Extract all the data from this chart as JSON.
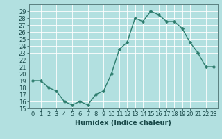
{
  "x": [
    0,
    1,
    2,
    3,
    4,
    5,
    6,
    7,
    8,
    9,
    10,
    11,
    12,
    13,
    14,
    15,
    16,
    17,
    18,
    19,
    20,
    21,
    22,
    23
  ],
  "y": [
    19,
    19,
    18,
    17.5,
    16,
    15.5,
    16,
    15.5,
    17,
    17.5,
    20,
    23.5,
    24.5,
    28,
    27.5,
    29,
    28.5,
    27.5,
    27.5,
    26.5,
    24.5,
    23,
    21,
    21
  ],
  "line_color": "#2e7d6e",
  "marker_color": "#2e7d6e",
  "bg_color": "#b2e0e0",
  "grid_color": "#ffffff",
  "xlabel": "Humidex (Indice chaleur)",
  "ylim": [
    15,
    30
  ],
  "xlim_min": -0.5,
  "xlim_max": 23.5,
  "yticks": [
    15,
    16,
    17,
    18,
    19,
    20,
    21,
    22,
    23,
    24,
    25,
    26,
    27,
    28,
    29
  ],
  "xticks": [
    0,
    1,
    2,
    3,
    4,
    5,
    6,
    7,
    8,
    9,
    10,
    11,
    12,
    13,
    14,
    15,
    16,
    17,
    18,
    19,
    20,
    21,
    22,
    23
  ],
  "xlabel_fontsize": 7,
  "tick_fontsize": 6,
  "marker_size": 2.5,
  "line_width": 1.0,
  "spine_color": "#5a8080"
}
